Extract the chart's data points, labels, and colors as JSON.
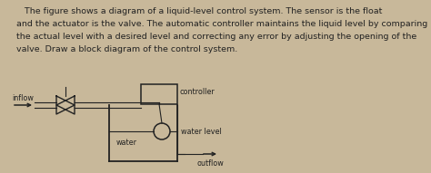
{
  "bg_color": "#c8b89a",
  "text_color": "#222222",
  "line_color": "#222222",
  "title_lines": [
    "   The figure shows a diagram of a liquid-level control system. The sensor is the float",
    "and the actuator is the valve. The automatic controller maintains the liquid level by comparing",
    "the actual level with a desired level and correcting any error by adjusting the opening of the",
    "valve. Draw a block diagram of the control system."
  ],
  "title_fontsize": 6.8,
  "diagram_labels": {
    "inflow": "inflow",
    "controller": "controller",
    "water_level": "water level",
    "water": "water",
    "outflow": "outflow"
  },
  "label_fontsize": 5.8
}
